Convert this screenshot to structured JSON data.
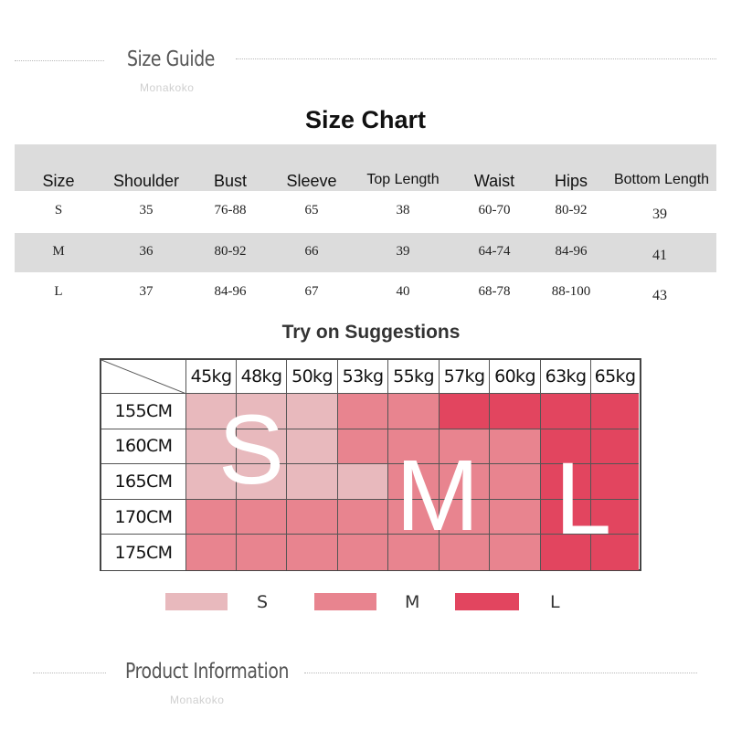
{
  "size_guide": {
    "title": "Size Guide",
    "brand": "Monakoko"
  },
  "size_chart": {
    "title": "Size Chart",
    "headers": [
      "Size",
      "Shoulder",
      "Bust",
      "Sleeve",
      "Top Length",
      "Waist",
      "Hips",
      "Bottom Length"
    ],
    "rows": [
      [
        "S",
        "35",
        "76-88",
        "65",
        "38",
        "60-70",
        "80-92",
        "39"
      ],
      [
        "M",
        "36",
        "80-92",
        "66",
        "39",
        "64-74",
        "84-96",
        "41"
      ],
      [
        "L",
        "37",
        "84-96",
        "67",
        "40",
        "68-78",
        "88-100",
        "43"
      ]
    ]
  },
  "try_on": {
    "title": "Try on Suggestions",
    "weights": [
      "45kg",
      "48kg",
      "50kg",
      "53kg",
      "55kg",
      "57kg",
      "60kg",
      "63kg",
      "65kg"
    ],
    "heights": [
      "155CM",
      "160CM",
      "165CM",
      "170CM",
      "175CM"
    ],
    "grid": [
      [
        "S",
        "S",
        "S",
        "M",
        "M",
        "L",
        "L",
        "L",
        "L"
      ],
      [
        "S",
        "S",
        "S",
        "M",
        "M",
        "M",
        "M",
        "L",
        "L"
      ],
      [
        "S",
        "S",
        "S",
        "S",
        "M",
        "M",
        "M",
        "L",
        "L"
      ],
      [
        "M",
        "M",
        "M",
        "M",
        "M",
        "M",
        "M",
        "L",
        "L"
      ],
      [
        "M",
        "M",
        "M",
        "M",
        "M",
        "M",
        "M",
        "L",
        "L"
      ]
    ],
    "overlay_letters": [
      "S",
      "M",
      "L"
    ],
    "colors": {
      "S": "#e8b9bd",
      "M": "#e8848f",
      "L": "#e2455f"
    },
    "legend": [
      {
        "label": "S",
        "color": "#e8b9bd"
      },
      {
        "label": "M",
        "color": "#e8848f"
      },
      {
        "label": "L",
        "color": "#e2455f"
      }
    ]
  },
  "product_info": {
    "title": "Product Information",
    "brand": "Monakoko"
  }
}
